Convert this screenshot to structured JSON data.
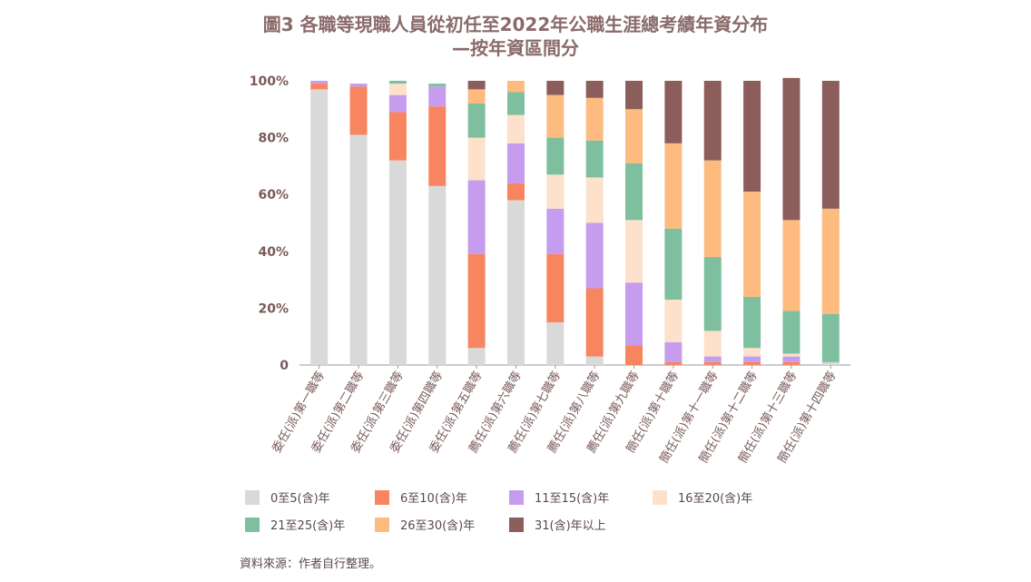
{
  "title_line1": "圖3 各職等現職人員從初任至2022年公職生涯總考績年資分布",
  "title_line2": "—按年資區間分",
  "source": "資料來源：作者自行整理。",
  "chart_data": {
    "type": "bar",
    "stacked": true,
    "percent": true,
    "ylim": [
      0,
      100
    ],
    "yticks": [
      "0",
      "20%",
      "40%",
      "60%",
      "80%",
      "100%"
    ],
    "categories": [
      "委任(派)第一職等",
      "委任(派)第二職等",
      "委任(派)第三職等",
      "委任(派)第四職等",
      "委任(派)第五職等",
      "薦任(派)第六職等",
      "薦任(派)第七職等",
      "薦任(派)第八職等",
      "薦任(派)第九職等",
      "簡任(派)第十職等",
      "簡任(派)第十一職等",
      "簡任(派)第十二職等",
      "簡任(派)第十三職等",
      "簡任(派)第十四職等"
    ],
    "series": [
      {
        "name": "0至5(含)年",
        "color": "#d9d9d9",
        "values": [
          97,
          81,
          72,
          63,
          6,
          58,
          15,
          3,
          0,
          0,
          0,
          0,
          0,
          1
        ]
      },
      {
        "name": "6至10(含)年",
        "color": "#f7855f",
        "values": [
          2,
          17,
          17,
          28,
          33,
          6,
          24,
          24,
          7,
          1,
          1,
          1,
          1,
          0
        ]
      },
      {
        "name": "11至15(含)年",
        "color": "#c69cee",
        "values": [
          1,
          1,
          6,
          7,
          26,
          14,
          16,
          23,
          22,
          7,
          2,
          2,
          2,
          0
        ]
      },
      {
        "name": "16至20(含)年",
        "color": "#fde1cb",
        "values": [
          0,
          0,
          4,
          0,
          15,
          10,
          12,
          16,
          22,
          15,
          9,
          3,
          1,
          0
        ]
      },
      {
        "name": "21至25(含)年",
        "color": "#7ebf9f",
        "values": [
          0,
          0,
          1,
          1,
          12,
          8,
          13,
          13,
          20,
          25,
          26,
          18,
          15,
          17
        ]
      },
      {
        "name": "26至30(含)年",
        "color": "#fdbb80",
        "values": [
          0,
          0,
          0,
          0,
          5,
          4,
          15,
          15,
          19,
          30,
          34,
          37,
          32,
          37
        ]
      },
      {
        "name": "31(含)年以上",
        "color": "#8c5e5b",
        "values": [
          0,
          0,
          0,
          0,
          3,
          0,
          5,
          6,
          10,
          22,
          28,
          39,
          50,
          45
        ]
      }
    ]
  }
}
